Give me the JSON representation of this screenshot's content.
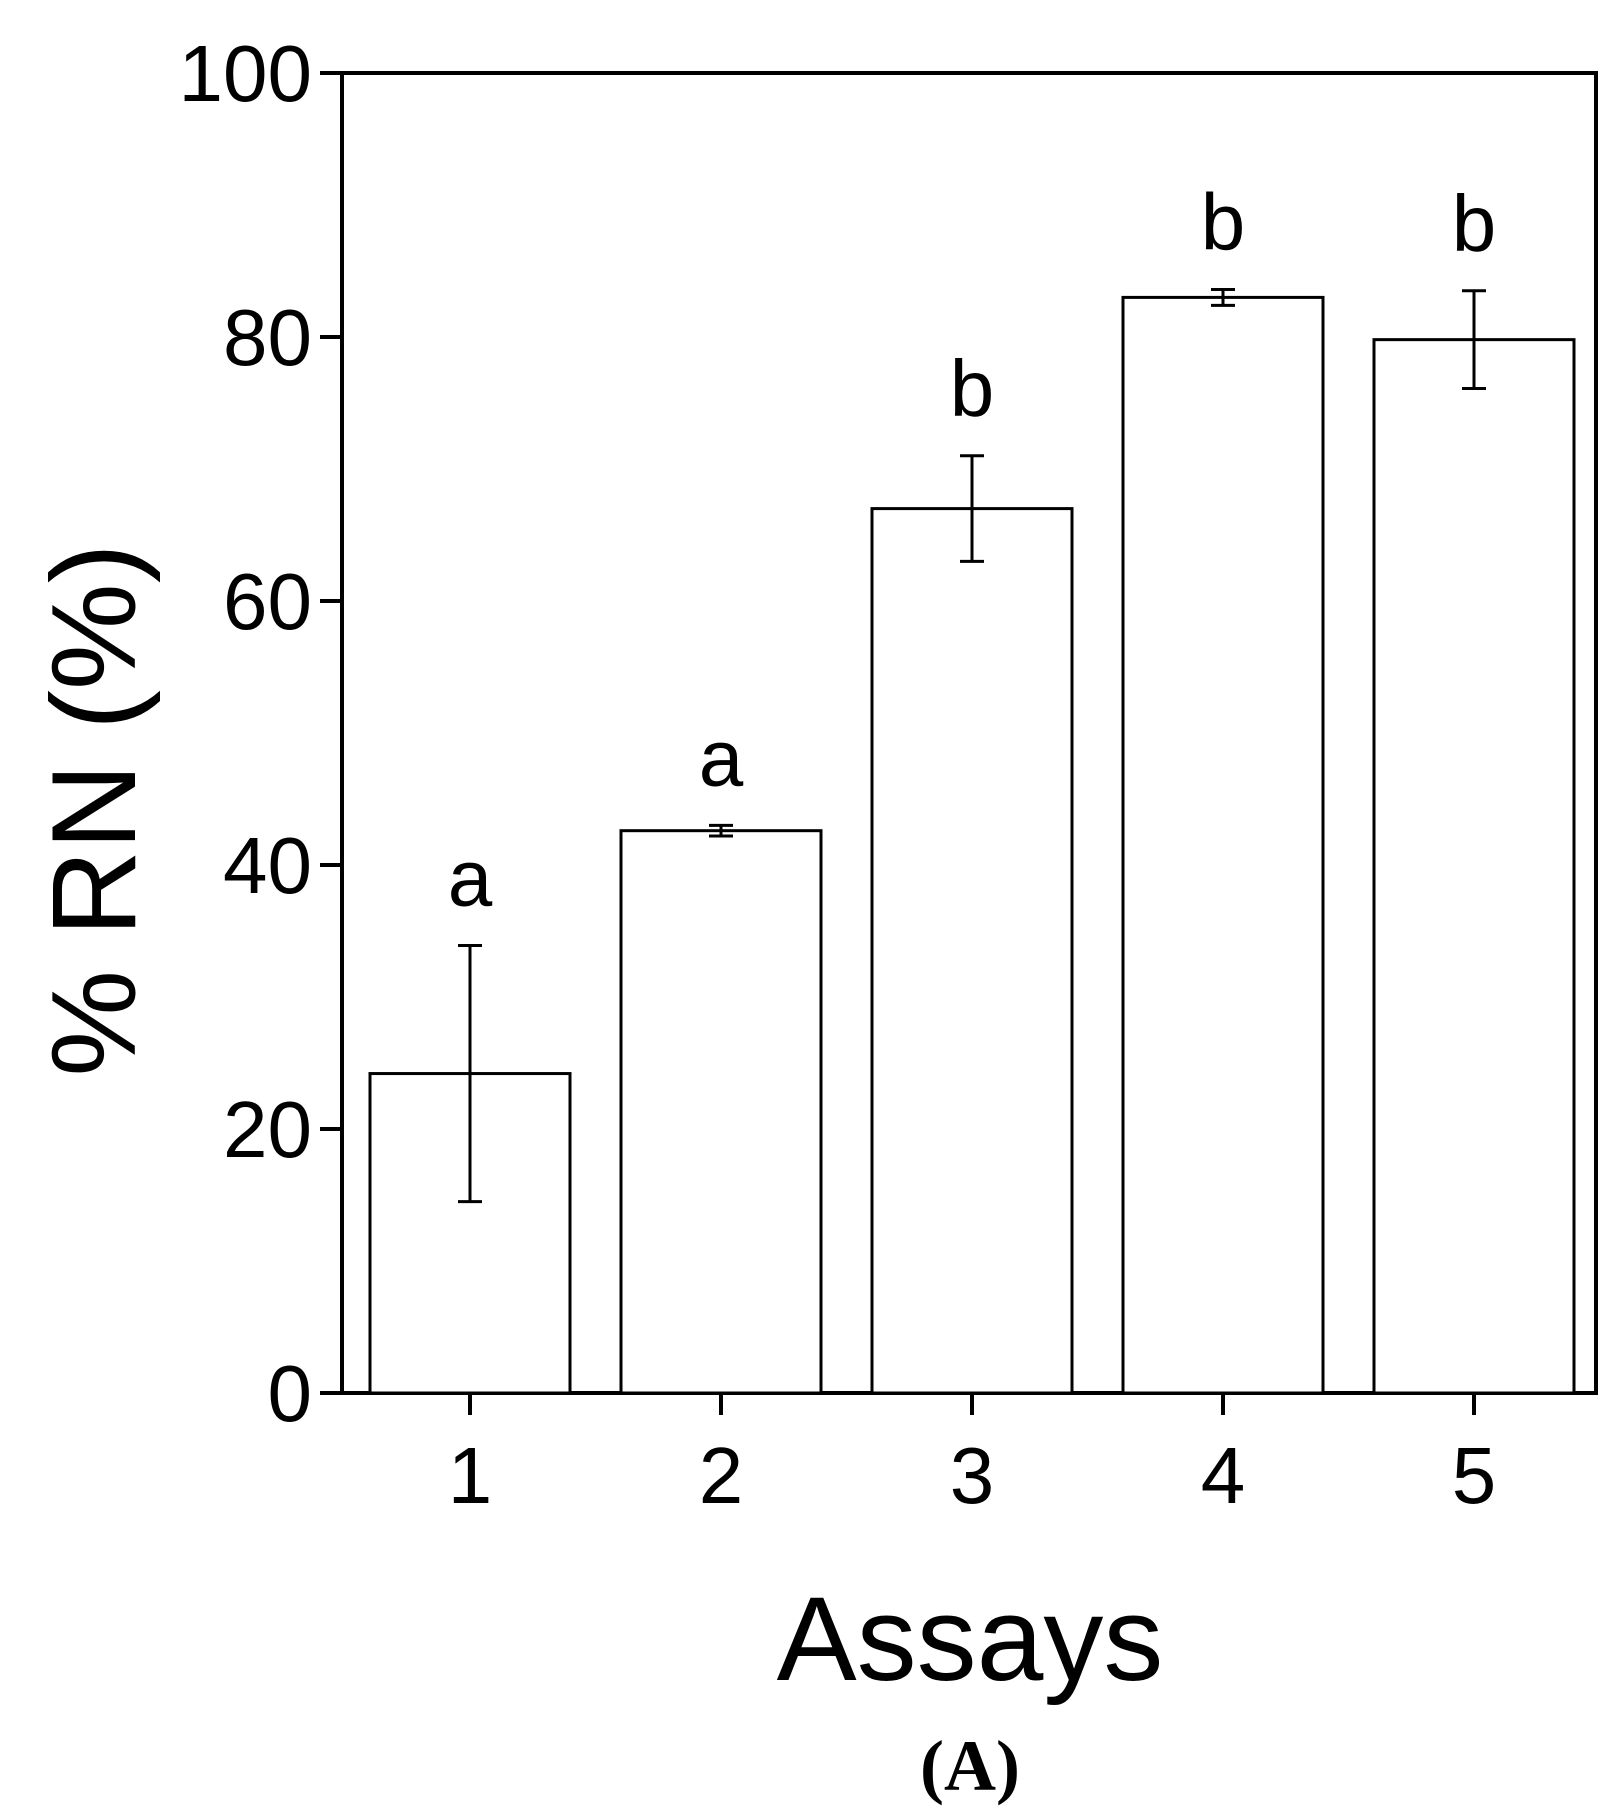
{
  "chart_data": {
    "type": "bar",
    "categories": [
      "1",
      "2",
      "3",
      "4",
      "5"
    ],
    "values": [
      24.2,
      42.6,
      67,
      83,
      79.8
    ],
    "error_bars": [
      9.7,
      0.4,
      4,
      0.6,
      3.7
    ],
    "significance_letters": [
      "a",
      "a",
      "b",
      "b",
      "b"
    ],
    "xlabel": "Assays",
    "ylabel": "% RN (%)",
    "ylim": [
      0,
      100
    ],
    "yticks": [
      "0",
      "20",
      "40",
      "60",
      "80",
      "100"
    ],
    "grid": false,
    "bar_fill": "#ffffff",
    "bar_stroke": "#000000"
  },
  "panel_label": "(A)"
}
